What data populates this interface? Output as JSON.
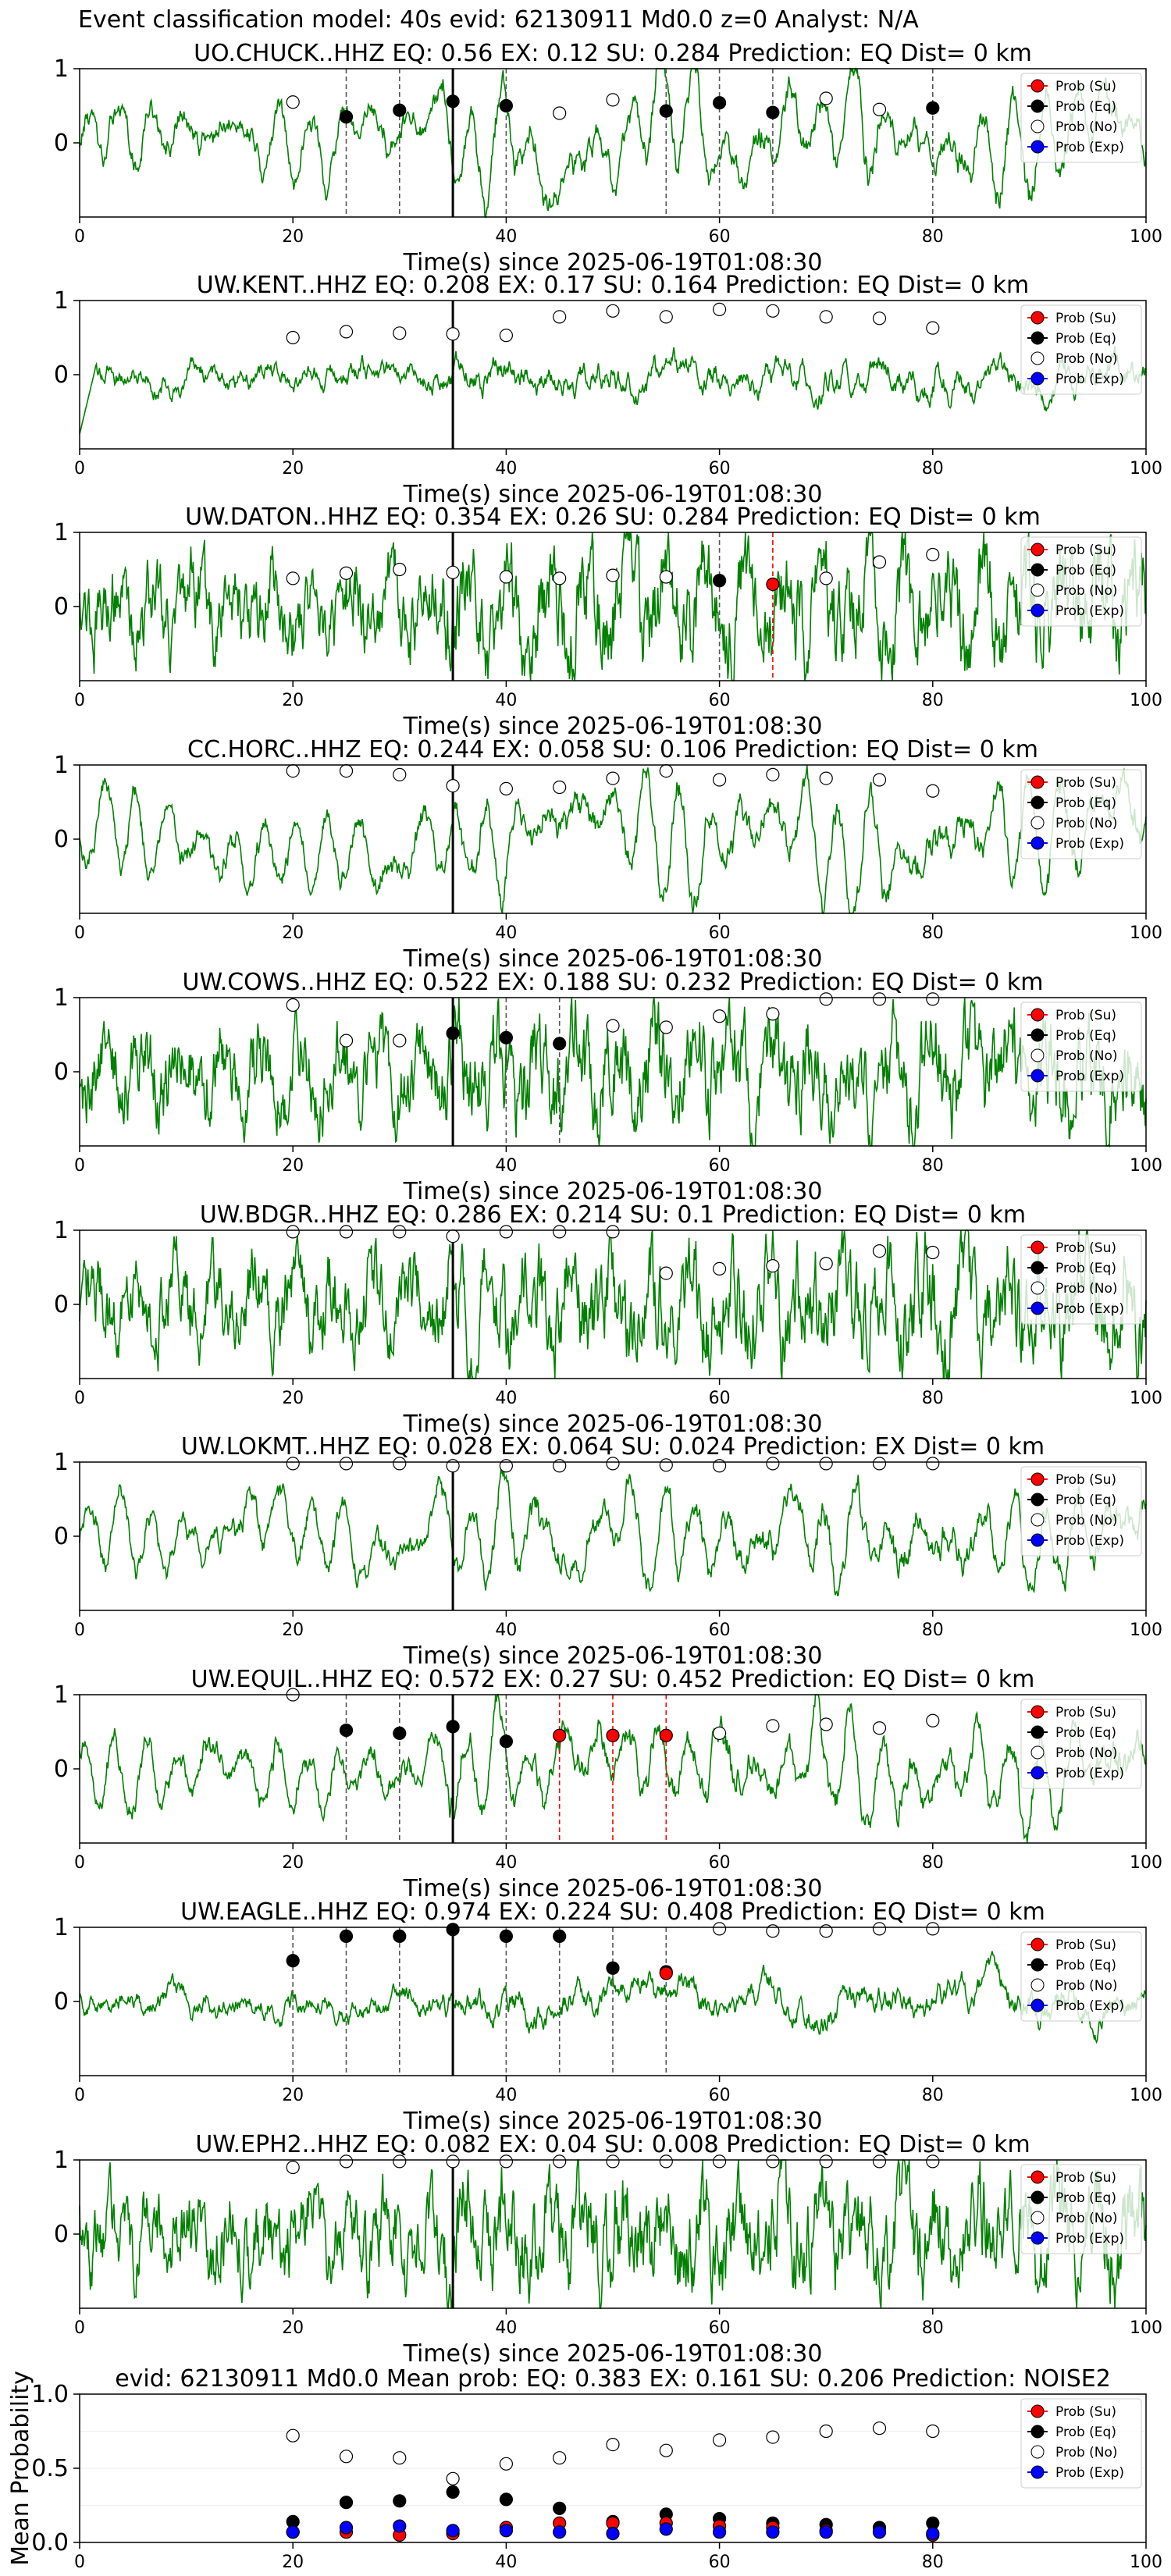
{
  "title": "Event classification model: 40s evid: 62130911 Md0.0 z=0 Analyst: N/A",
  "colors": {
    "waveform": "#008000",
    "su": "#ff0000",
    "eq": "#000000",
    "no": "#ffffff",
    "exp": "#0000ff",
    "pick_eq": "#555555",
    "pick_su": "#ff0000",
    "origin": "#000000"
  },
  "legend_labels": [
    "Prob (Su)",
    "Prob (Eq)",
    "Prob (No)",
    "Prob (Exp)"
  ],
  "xlabel": "Time(s) since 2025-06-19T01:08:30",
  "chart_data": [
    {
      "type": "line",
      "title": "UO.CHUCK..HHZ   EQ: 0.56   EX: 0.12   SU: 0.284   Prediction: EQ    Dist= 0 km",
      "xlabel": "Time(s) since 2025-06-19T01:08:30",
      "xlim": [
        0,
        100
      ],
      "xticks": [
        0,
        20,
        40,
        60,
        80,
        100
      ],
      "yticks": [
        1,
        0
      ],
      "origin_time": 35,
      "noise": 0.25,
      "style": "smooth",
      "markers": [
        {
          "name": "Prob (Eq)",
          "x": [
            25,
            30,
            35,
            40,
            55,
            60,
            65,
            80
          ],
          "y": [
            0.35,
            0.44,
            0.56,
            0.5,
            0.43,
            0.54,
            0.41,
            0.47
          ]
        },
        {
          "name": "Prob (No)",
          "x": [
            20,
            45,
            50,
            70,
            75
          ],
          "y": [
            0.55,
            0.4,
            0.58,
            0.6,
            0.45
          ]
        }
      ],
      "picks": [
        {
          "x": 25,
          "type": "eq"
        },
        {
          "x": 30,
          "type": "eq"
        },
        {
          "x": 40,
          "type": "eq"
        },
        {
          "x": 55,
          "type": "eq"
        },
        {
          "x": 60,
          "type": "eq"
        },
        {
          "x": 65,
          "type": "eq"
        },
        {
          "x": 80,
          "type": "eq"
        }
      ]
    },
    {
      "type": "line",
      "title": "UW.KENT..HHZ   EQ: 0.208  EX: 0.17  SU: 0.164   Prediction: EQ    Dist= 0 km",
      "xlabel": "Time(s) since 2025-06-19T01:08:30",
      "xlim": [
        0,
        100
      ],
      "xticks": [
        0,
        20,
        40,
        60,
        80,
        100
      ],
      "yticks": [
        1,
        0
      ],
      "origin_time": 35,
      "noise": 0.05,
      "style": "quiet",
      "markers": [
        {
          "name": "Prob (No)",
          "x": [
            20,
            25,
            30,
            35,
            40,
            45,
            50,
            55,
            60,
            65,
            70,
            75,
            80
          ],
          "y": [
            0.5,
            0.58,
            0.56,
            0.55,
            0.53,
            0.78,
            0.86,
            0.78,
            0.88,
            0.86,
            0.78,
            0.76,
            0.63
          ]
        }
      ],
      "picks": []
    },
    {
      "type": "line",
      "title": "UW.DATON..HHZ   EQ: 0.354  EX: 0.26  SU: 0.284   Prediction: EQ    Dist= 0 km",
      "xlabel": "Time(s) since 2025-06-19T01:08:30",
      "xlim": [
        0,
        100
      ],
      "xticks": [
        0,
        20,
        40,
        60,
        80,
        100
      ],
      "yticks": [
        1,
        0
      ],
      "origin_time": 35,
      "noise": 0.35,
      "style": "noisy",
      "markers": [
        {
          "name": "Prob (Eq)",
          "x": [
            60
          ],
          "y": [
            0.35
          ]
        },
        {
          "name": "Prob (Su)",
          "x": [
            65
          ],
          "y": [
            0.3
          ]
        },
        {
          "name": "Prob (No)",
          "x": [
            20,
            25,
            30,
            35,
            40,
            45,
            50,
            55,
            70,
            75,
            80
          ],
          "y": [
            0.38,
            0.45,
            0.5,
            0.46,
            0.4,
            0.38,
            0.42,
            0.4,
            0.38,
            0.6,
            0.7
          ]
        }
      ],
      "picks": [
        {
          "x": 60,
          "type": "eq"
        },
        {
          "x": 65,
          "type": "su"
        }
      ]
    },
    {
      "type": "line",
      "title": "CC.HORC..HHZ   EQ: 0.244  EX: 0.058  SU: 0.106   Prediction: EQ    Dist= 0 km",
      "xlabel": "Time(s) since 2025-06-19T01:08:30",
      "xlim": [
        0,
        100
      ],
      "xticks": [
        0,
        20,
        40,
        60,
        80,
        100
      ],
      "yticks": [
        1,
        0
      ],
      "origin_time": 35,
      "noise": 0.3,
      "style": "smooth",
      "markers": [
        {
          "name": "Prob (No)",
          "x": [
            20,
            25,
            30,
            35,
            40,
            45,
            50,
            55,
            60,
            65,
            70,
            75,
            80
          ],
          "y": [
            0.92,
            0.92,
            0.87,
            0.72,
            0.68,
            0.7,
            0.82,
            0.92,
            0.8,
            0.87,
            0.82,
            0.8,
            0.65
          ]
        }
      ],
      "picks": []
    },
    {
      "type": "line",
      "title": "UW.COWS..HHZ   EQ: 0.522  EX: 0.188  SU: 0.232   Prediction: EQ    Dist= 0 km",
      "xlabel": "Time(s) since 2025-06-19T01:08:30",
      "xlim": [
        0,
        100
      ],
      "xticks": [
        0,
        20,
        40,
        60,
        80,
        100
      ],
      "yticks": [
        1,
        0
      ],
      "origin_time": 35,
      "noise": 0.35,
      "style": "noisy",
      "markers": [
        {
          "name": "Prob (Eq)",
          "x": [
            35,
            40,
            45
          ],
          "y": [
            0.52,
            0.46,
            0.38
          ]
        },
        {
          "name": "Prob (No)",
          "x": [
            20,
            25,
            30,
            50,
            55,
            60,
            65,
            70,
            75,
            80
          ],
          "y": [
            0.9,
            0.42,
            0.42,
            0.62,
            0.6,
            0.75,
            0.78,
            0.98,
            0.98,
            0.98
          ]
        }
      ],
      "picks": [
        {
          "x": 40,
          "type": "eq"
        },
        {
          "x": 45,
          "type": "eq"
        }
      ]
    },
    {
      "type": "line",
      "title": "UW.BDGR..HHZ   EQ: 0.286  EX: 0.214  SU: 0.1   Prediction: EQ    Dist= 0 km",
      "xlabel": "Time(s) since 2025-06-19T01:08:30",
      "xlim": [
        0,
        100
      ],
      "xticks": [
        0,
        20,
        40,
        60,
        80,
        100
      ],
      "yticks": [
        1,
        0
      ],
      "origin_time": 35,
      "noise": 0.45,
      "style": "noisy",
      "markers": [
        {
          "name": "Prob (No)",
          "x": [
            20,
            25,
            30,
            35,
            40,
            45,
            50,
            55,
            60,
            65,
            70,
            75,
            80
          ],
          "y": [
            0.98,
            0.98,
            0.98,
            0.92,
            0.98,
            0.98,
            0.98,
            0.42,
            0.48,
            0.52,
            0.55,
            0.72,
            0.7
          ]
        }
      ],
      "picks": []
    },
    {
      "type": "line",
      "title": "UW.LOKMT..HHZ   EQ: 0.028  EX: 0.064  SU: 0.024   Prediction: EX    Dist= 0 km",
      "xlabel": "Time(s) since 2025-06-19T01:08:30",
      "xlim": [
        0,
        100
      ],
      "xticks": [
        0,
        20,
        40,
        60,
        80,
        100
      ],
      "yticks": [
        1,
        0
      ],
      "origin_time": 35,
      "noise": 0.3,
      "style": "smooth",
      "markers": [
        {
          "name": "Prob (No)",
          "x": [
            20,
            25,
            30,
            35,
            40,
            45,
            50,
            55,
            60,
            65,
            70,
            75,
            80
          ],
          "y": [
            0.98,
            0.98,
            0.98,
            0.95,
            0.95,
            0.95,
            0.98,
            0.96,
            0.95,
            0.98,
            0.98,
            0.98,
            0.98
          ]
        }
      ],
      "picks": []
    },
    {
      "type": "line",
      "title": "UW.EQUIL..HHZ   EQ: 0.572  EX: 0.27  SU: 0.452   Prediction: EQ    Dist= 0 km",
      "xlabel": "Time(s) since 2025-06-19T01:08:30",
      "xlim": [
        0,
        100
      ],
      "xticks": [
        0,
        20,
        40,
        60,
        80,
        100
      ],
      "yticks": [
        1,
        0
      ],
      "origin_time": 35,
      "noise": 0.3,
      "style": "smooth",
      "markers": [
        {
          "name": "Prob (Eq)",
          "x": [
            25,
            30,
            35,
            40
          ],
          "y": [
            0.52,
            0.48,
            0.57,
            0.37
          ]
        },
        {
          "name": "Prob (Su)",
          "x": [
            45,
            50,
            55
          ],
          "y": [
            0.45,
            0.45,
            0.45
          ]
        },
        {
          "name": "Prob (No)",
          "x": [
            20,
            60,
            65,
            70,
            75,
            80
          ],
          "y": [
            1.0,
            0.48,
            0.58,
            0.6,
            0.55,
            0.65
          ]
        }
      ],
      "picks": [
        {
          "x": 25,
          "type": "eq"
        },
        {
          "x": 30,
          "type": "eq"
        },
        {
          "x": 40,
          "type": "eq"
        },
        {
          "x": 45,
          "type": "su"
        },
        {
          "x": 50,
          "type": "su"
        },
        {
          "x": 55,
          "type": "su"
        }
      ]
    },
    {
      "type": "line",
      "title": "UW.EAGLE..HHZ   EQ: 0.974  EX: 0.224  SU: 0.408   Prediction: EQ    Dist= 0 km",
      "xlabel": "Time(s) since 2025-06-19T01:08:30",
      "xlim": [
        0,
        100
      ],
      "xticks": [
        0,
        20,
        40,
        60,
        80,
        100
      ],
      "yticks": [
        1,
        0
      ],
      "origin_time": 35,
      "noise": 0.15,
      "style": "quiet",
      "markers": [
        {
          "name": "Prob (Eq)",
          "x": [
            20,
            25,
            30,
            35,
            40,
            45,
            50,
            55
          ],
          "y": [
            0.55,
            0.88,
            0.88,
            0.97,
            0.88,
            0.88,
            0.45,
            0.4
          ]
        },
        {
          "name": "Prob (Su)",
          "x": [
            55
          ],
          "y": [
            0.38
          ]
        },
        {
          "name": "Prob (No)",
          "x": [
            60,
            65,
            70,
            75,
            80
          ],
          "y": [
            0.98,
            0.95,
            0.95,
            0.98,
            0.98
          ]
        }
      ],
      "picks": [
        {
          "x": 20,
          "type": "eq"
        },
        {
          "x": 25,
          "type": "eq"
        },
        {
          "x": 30,
          "type": "eq"
        },
        {
          "x": 40,
          "type": "eq"
        },
        {
          "x": 45,
          "type": "eq"
        },
        {
          "x": 50,
          "type": "eq"
        },
        {
          "x": 55,
          "type": "eq"
        }
      ]
    },
    {
      "type": "line",
      "title": "UW.EPH2..HHZ   EQ: 0.082  EX: 0.04  SU: 0.008   Prediction: EQ    Dist= 0 km",
      "xlabel": "Time(s) since 2025-06-19T01:08:30",
      "xlim": [
        0,
        100
      ],
      "xticks": [
        0,
        20,
        40,
        60,
        80,
        100
      ],
      "yticks": [
        1,
        0
      ],
      "origin_time": 35,
      "noise": 0.4,
      "style": "noisy",
      "markers": [
        {
          "name": "Prob (No)",
          "x": [
            20,
            25,
            30,
            35,
            40,
            45,
            50,
            55,
            60,
            65,
            70,
            75,
            80
          ],
          "y": [
            0.9,
            0.98,
            0.98,
            0.98,
            0.98,
            0.98,
            0.98,
            0.98,
            0.98,
            0.98,
            0.98,
            0.98,
            0.98
          ]
        }
      ],
      "picks": []
    },
    {
      "type": "scatter",
      "title": "evid: 62130911  Md0.0   Mean prob:   EQ: 0.383  EX: 0.161  SU: 0.206   Prediction: NOISE2",
      "ylabel": "Mean Probability",
      "xlim": [
        0,
        100
      ],
      "ylim": [
        0,
        1
      ],
      "xticks": [
        0,
        20,
        40,
        60,
        80,
        100
      ],
      "yticks": [
        0.0,
        0.5,
        1.0
      ],
      "x": [
        20,
        25,
        30,
        35,
        40,
        45,
        50,
        55,
        60,
        65,
        70,
        75,
        80
      ],
      "series": [
        {
          "name": "Prob (No)",
          "values": [
            0.72,
            0.58,
            0.57,
            0.43,
            0.53,
            0.57,
            0.66,
            0.62,
            0.69,
            0.71,
            0.75,
            0.77,
            0.75
          ]
        },
        {
          "name": "Prob (Eq)",
          "values": [
            0.14,
            0.27,
            0.28,
            0.34,
            0.29,
            0.23,
            0.14,
            0.19,
            0.16,
            0.13,
            0.12,
            0.1,
            0.13
          ]
        },
        {
          "name": "Prob (Su)",
          "values": [
            0.07,
            0.07,
            0.05,
            0.06,
            0.1,
            0.13,
            0.13,
            0.13,
            0.11,
            0.1,
            0.08,
            0.07,
            0.05
          ]
        },
        {
          "name": "Prob (Exp)",
          "values": [
            0.07,
            0.1,
            0.11,
            0.08,
            0.08,
            0.07,
            0.06,
            0.09,
            0.07,
            0.07,
            0.07,
            0.07,
            0.06
          ]
        }
      ]
    }
  ]
}
